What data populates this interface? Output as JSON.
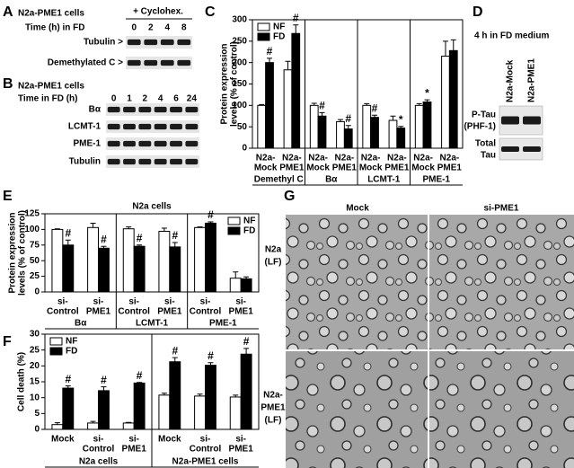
{
  "panel_letters": [
    "A",
    "B",
    "C",
    "D",
    "E",
    "F",
    "G"
  ],
  "blot_A": {
    "cells": "N2a-PME1 cells",
    "treatment": "+ Cyclohex.",
    "time_label": "Time (h) in FD",
    "times": [
      "0",
      "2",
      "4",
      "8"
    ],
    "rows": [
      "Tubulin >",
      "Demethylated C >"
    ]
  },
  "blot_B": {
    "cells": "N2a-PME1 cells",
    "time_label": "Time in FD (h)",
    "times": [
      "0",
      "1",
      "2",
      "4",
      "6",
      "24"
    ],
    "rows": [
      "Bα",
      "LCMT-1",
      "PME-1",
      "Tubulin"
    ]
  },
  "blot_D": {
    "title": "4 h in FD medium",
    "lanes": [
      "N2a-Mock",
      "N2a-PME1"
    ],
    "rows": [
      [
        "P-Tau",
        "(PHF-1)"
      ],
      [
        "Total",
        "Tau"
      ]
    ]
  },
  "micrographs_G": {
    "columns": [
      "Mock",
      "si-PME1"
    ],
    "rows": [
      [
        "N2a",
        "(LF)"
      ],
      [
        "N2a-",
        "PME1",
        "(LF)"
      ]
    ]
  },
  "chart_data": [
    {
      "type": "bar",
      "ylabel": [
        "Protein expression",
        "levels (% of control)"
      ],
      "categories": [
        [
          "N2a-",
          "Mock"
        ],
        [
          "N2a-",
          "PME1"
        ],
        [
          "N2a-",
          "Mock"
        ],
        [
          "N2a-",
          "PME1"
        ],
        [
          "N2a-",
          "Mock"
        ],
        [
          "N2a-",
          "PME1"
        ],
        [
          "N2a-",
          "Mock"
        ],
        [
          "N2a-",
          "PME1"
        ]
      ],
      "group_labels": [
        "Demethyl C",
        "Bα",
        "LCMT-1",
        "PME-1"
      ],
      "series": [
        {
          "name": "NF",
          "color": "#ffffff",
          "values": [
            100,
            183,
            100,
            62,
            100,
            65,
            100,
            215
          ],
          "errors": [
            2,
            20,
            5,
            5,
            4,
            10,
            4,
            35
          ],
          "significance": [
            null,
            null,
            null,
            null,
            null,
            null,
            null,
            null
          ]
        },
        {
          "name": "FD",
          "color": "#000000",
          "values": [
            200,
            268,
            75,
            45,
            72,
            47,
            108,
            228
          ],
          "errors": [
            10,
            20,
            8,
            8,
            5,
            4,
            5,
            25
          ],
          "significance": [
            "#",
            "#",
            "#",
            "#",
            "#",
            "*",
            "*",
            null
          ]
        }
      ],
      "ylim": [
        0,
        300
      ],
      "yticks": [
        0,
        50,
        100,
        150,
        200,
        250,
        300
      ],
      "legend": "top-left"
    },
    {
      "type": "bar",
      "title": "N2a cells",
      "ylabel": [
        "Protein expression",
        "levels (% of control)"
      ],
      "categories": [
        [
          "si-",
          "Control"
        ],
        [
          "si-",
          "PME1"
        ],
        [
          "si-",
          "Control"
        ],
        [
          "si-",
          "PME1"
        ],
        [
          "si-",
          "Control"
        ],
        [
          "si-",
          "PME1"
        ]
      ],
      "group_labels": [
        "Bα",
        "LCMT-1",
        "PME-1"
      ],
      "series": [
        {
          "name": "NF",
          "color": "#ffffff",
          "values": [
            100,
            103,
            101,
            97,
            103,
            22
          ],
          "errors": [
            1,
            7,
            3,
            5,
            1,
            10
          ],
          "significance": [
            null,
            null,
            null,
            null,
            null,
            null
          ]
        },
        {
          "name": "FD",
          "color": "#000000",
          "values": [
            75,
            70,
            73,
            72,
            110,
            21
          ],
          "errors": [
            8,
            3,
            2,
            7,
            2,
            3
          ],
          "significance": [
            "#",
            "#",
            "#",
            "#",
            "#",
            null
          ]
        }
      ],
      "ylim": [
        0,
        125
      ],
      "yticks": [
        0,
        25,
        50,
        75,
        100,
        125
      ],
      "legend": "top-right"
    },
    {
      "type": "bar",
      "ylabel": [
        "Cell death (%)"
      ],
      "categories": [
        [
          "Mock"
        ],
        [
          "si-",
          "Control"
        ],
        [
          "si-",
          "PME1"
        ],
        [
          "Mock"
        ],
        [
          "si-",
          "Control"
        ],
        [
          "si-",
          "PME1"
        ]
      ],
      "group_labels": [
        "N2a cells",
        "N2a-PME1 cells"
      ],
      "series": [
        {
          "name": "NF",
          "color": "#ffffff",
          "values": [
            1.5,
            2,
            2,
            10.8,
            10.5,
            10.2
          ],
          "errors": [
            0.6,
            0.5,
            0.2,
            0.6,
            0.6,
            0.6
          ],
          "significance": [
            null,
            null,
            null,
            null,
            null,
            null
          ]
        },
        {
          "name": "FD",
          "color": "#000000",
          "values": [
            13,
            12.2,
            14.6,
            21.3,
            20.2,
            23.7
          ],
          "errors": [
            0.7,
            1.2,
            0.2,
            1.3,
            0.8,
            1.8
          ],
          "significance": [
            "#",
            "#",
            "#",
            "#",
            "#",
            "#"
          ]
        }
      ],
      "ylim": [
        0,
        30
      ],
      "yticks": [
        0,
        5,
        10,
        15,
        20,
        25,
        30
      ],
      "legend": "top-left"
    }
  ]
}
